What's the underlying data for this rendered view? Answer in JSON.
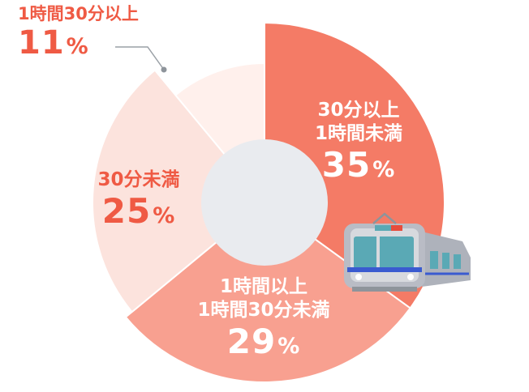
{
  "colors": {
    "s0": "#f47b66",
    "s1": "#f8a090",
    "s2": "#fce3dd",
    "s3": "#fff0ec",
    "center": "#e9ebef",
    "label_red": "#ef5a44",
    "train_body": "#b9bcc5",
    "train_face": "#d7d9de",
    "train_window": "#5aa9b5",
    "train_accent": "#3a5bd0",
    "train_light": "#e74c3c"
  },
  "icons": [
    "train-icon"
  ],
  "chart_data": {
    "type": "pie",
    "variant": "donut",
    "slices": [
      {
        "label_lines": [
          "30分以上",
          "1時間未満"
        ],
        "value": 35,
        "pct_text": "35",
        "unit": "%"
      },
      {
        "label_lines": [
          "1時間以上",
          "1時間30分未満"
        ],
        "value": 29,
        "pct_text": "29",
        "unit": "%"
      },
      {
        "label_lines": [
          "30分未満"
        ],
        "value": 25,
        "pct_text": "25",
        "unit": "%"
      },
      {
        "label_lines": [
          "1時間30分以上"
        ],
        "value": 11,
        "pct_text": "11",
        "unit": "%"
      }
    ],
    "start_angle": "12 o'clock",
    "direction": "clockwise",
    "legend": "none"
  }
}
